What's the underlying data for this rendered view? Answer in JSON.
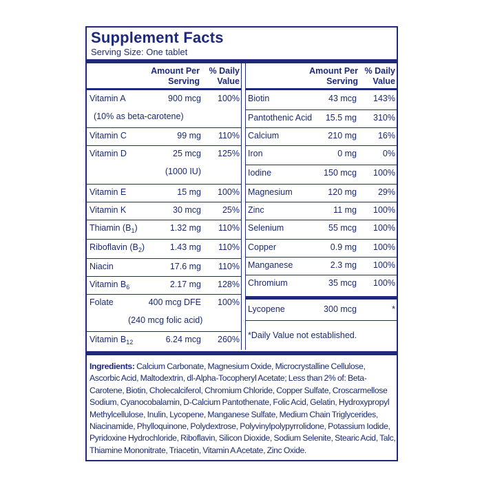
{
  "panel": {
    "title": "Supplement Facts",
    "serving_size": "Serving Size: One tablet"
  },
  "headers": {
    "amount_line1": "Amount Per",
    "amount_line2": "Serving",
    "dv_line1": "% Daily",
    "dv_line2": "Value"
  },
  "left_rows": [
    {
      "name": "Vitamin A",
      "sub": "",
      "amount": "900 mcg",
      "dv": "100%"
    },
    {
      "name": "(10% as beta-carotene)",
      "sub": "",
      "amount": "",
      "dv": ""
    },
    {
      "name": "Vitamin C",
      "sub": "",
      "amount": "99 mg",
      "dv": "110%"
    },
    {
      "name": "Vitamin D",
      "sub": "",
      "amount": "25 mcg",
      "dv": "125%"
    },
    {
      "name": "",
      "sub": "",
      "amount": "(1000 IU)",
      "dv": ""
    },
    {
      "name": "Vitamin E",
      "sub": "",
      "amount": "15 mg",
      "dv": "100%"
    },
    {
      "name": "Vitamin K",
      "sub": "",
      "amount": "30 mcg",
      "dv": "25%"
    },
    {
      "name": "Thiamin (B",
      "sub": "1",
      "after": ")",
      "amount": "1.32 mg",
      "dv": "110%"
    },
    {
      "name": "Riboflavin (B",
      "sub": "2",
      "after": ")",
      "amount": "1.43 mg",
      "dv": "110%"
    },
    {
      "name": "Niacin",
      "sub": "",
      "amount": "17.6 mg",
      "dv": "110%"
    },
    {
      "name": "Vitamin B",
      "sub": "6",
      "amount": "2.17 mg",
      "dv": "128%"
    },
    {
      "name": "Folate",
      "sub": "",
      "amount": "400 mcg DFE",
      "dv": "100%"
    },
    {
      "name": "",
      "sub": "",
      "amount": "(240 mcg folic acid)",
      "dv": ""
    },
    {
      "name": "Vitamin B",
      "sub": "12",
      "amount": "6.24 mcg",
      "dv": "260%"
    }
  ],
  "right_rows": [
    {
      "name": "Biotin",
      "amount": "43 mcg",
      "dv": "143%"
    },
    {
      "name": "Pantothenic Acid",
      "amount": "15.5 mg",
      "dv": "310%"
    },
    {
      "name": "Calcium",
      "amount": "210 mg",
      "dv": "16%"
    },
    {
      "name": "Iron",
      "amount": "0 mg",
      "dv": "0%"
    },
    {
      "name": "Iodine",
      "amount": "150 mcg",
      "dv": "100%"
    },
    {
      "name": "Magnesium",
      "amount": "120 mg",
      "dv": "29%"
    },
    {
      "name": "Zinc",
      "amount": "11 mg",
      "dv": "100%"
    },
    {
      "name": "Selenium",
      "amount": "55 mcg",
      "dv": "100%"
    },
    {
      "name": "Copper",
      "amount": "0.9 mg",
      "dv": "100%"
    },
    {
      "name": "Manganese",
      "amount": "2.3 mg",
      "dv": "100%"
    },
    {
      "name": "Chromium",
      "amount": "35 mcg",
      "dv": "100%"
    },
    {
      "name": "Lycopene",
      "amount": "300 mcg",
      "dv": "*"
    }
  ],
  "footnote": "*Daily Value not established.",
  "ingredients": {
    "label": "Ingredients:",
    "text": "Calcium Carbonate, Magnesium Oxide, Microcrystalline Cellulose, Ascorbic Acid, Maltodextrin, dl-Alpha-Tocopheryl Acetate; Less than 2% of: Beta-Carotene, Biotin, Cholecalciferol, Chromium Chloride, Copper Sulfate, Croscarmellose Sodium, Cyanocobalamin, D-Calcium Pantothenate, Folic Acid, Gelatin, Hydroxypropyl Methylcellulose, Inulin, Lycopene, Manganese Sulfate, Medium Chain Triglycerides, Niacinamide, Phylloquinone, Polydextrose, Polyvinylpolypyrrolidone, Potassium Iodide, Pyridoxine Hydrochloride, Riboflavin, Silicon Dioxide, Sodium Selenite, Stearic Acid, Talc, Thiamine Mononitrate, Triacetin, Vitamin A Acetate, Zinc Oxide."
  },
  "colors": {
    "border": "#1e2a78",
    "text": "#1a2a6c"
  }
}
